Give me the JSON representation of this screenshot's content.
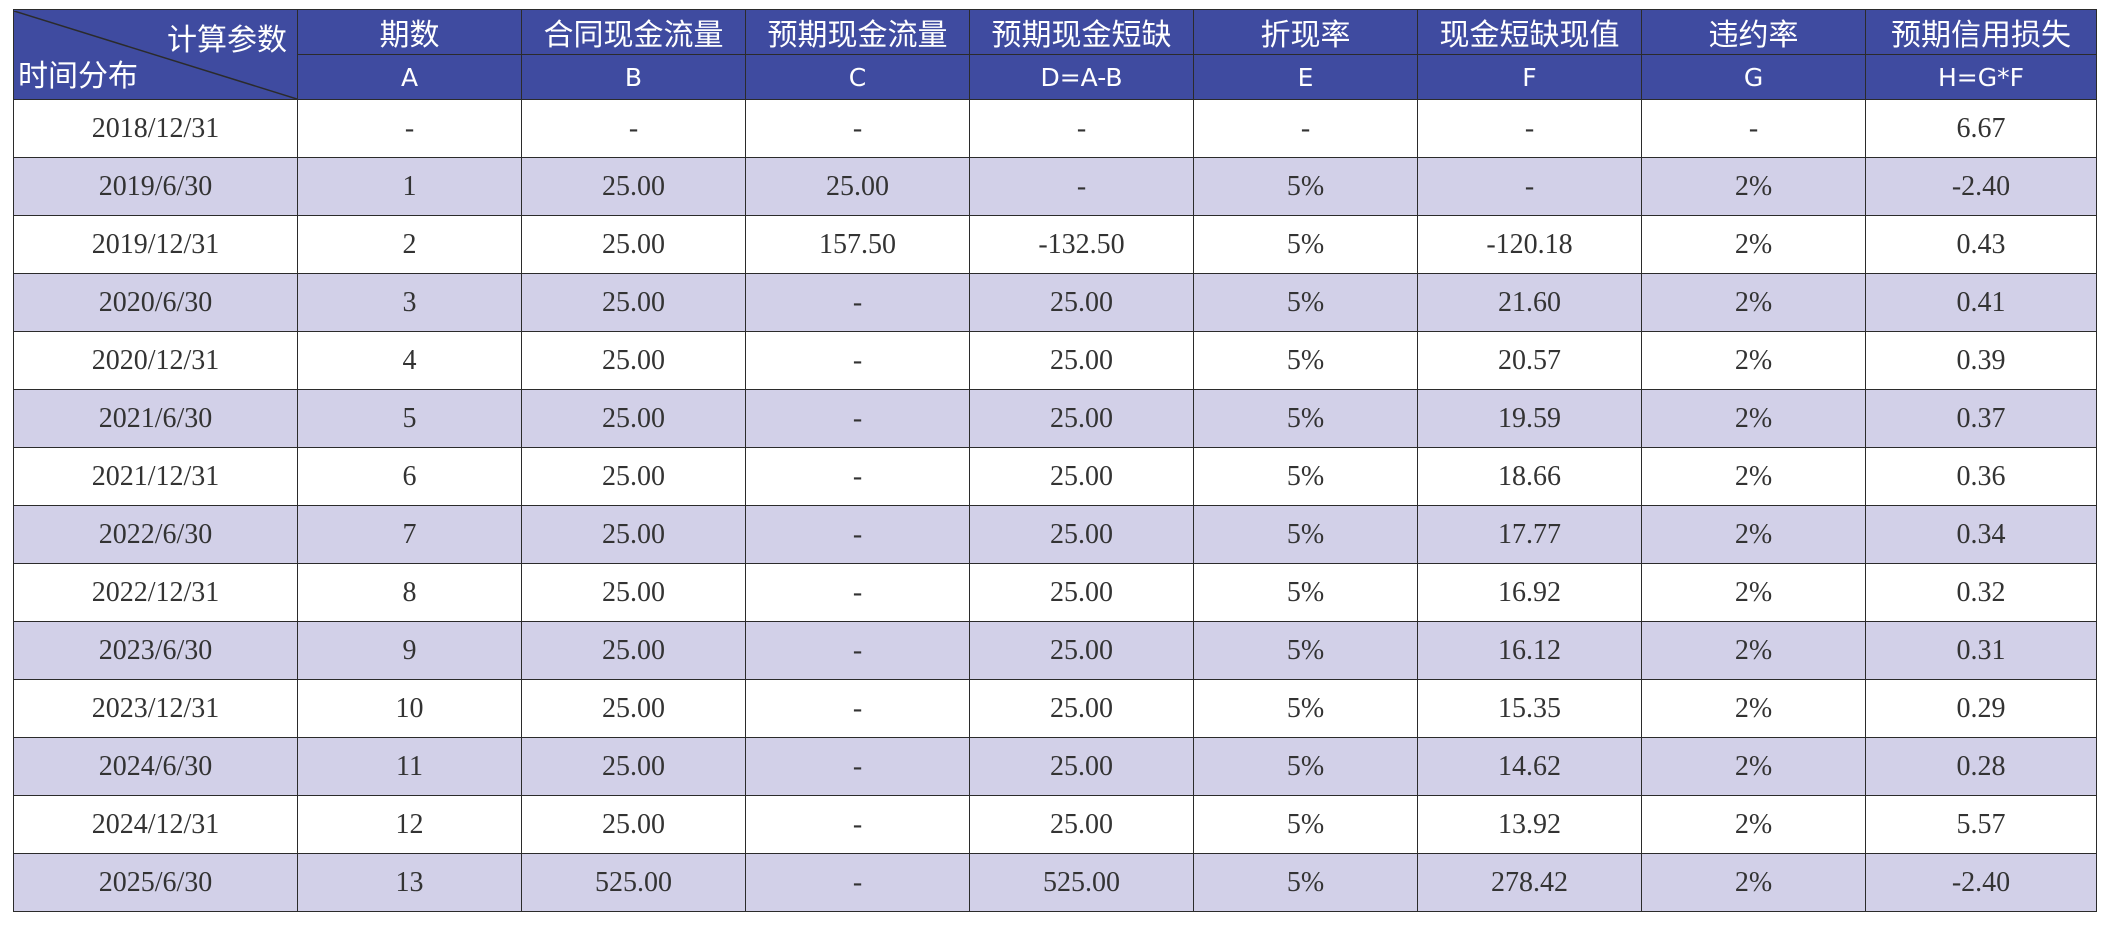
{
  "table": {
    "corner_top": "计算参数",
    "corner_bottom": "时间分布",
    "headers": [
      {
        "title": "期数",
        "code": "A"
      },
      {
        "title": "合同现金流量",
        "code": "B"
      },
      {
        "title": "预期现金流量",
        "code": "C"
      },
      {
        "title": "预期现金短缺",
        "code": "D=A-B"
      },
      {
        "title": "折现率",
        "code": "E"
      },
      {
        "title": "现金短缺现值",
        "code": "F"
      },
      {
        "title": "违约率",
        "code": "G"
      },
      {
        "title": "预期信用损失",
        "code": "H=G*F"
      }
    ],
    "rows": [
      [
        "2018/12/31",
        "-",
        "-",
        "-",
        "-",
        "-",
        "-",
        "-",
        "6.67"
      ],
      [
        "2019/6/30",
        "1",
        "25.00",
        "25.00",
        "-",
        "5%",
        "-",
        "2%",
        "-2.40"
      ],
      [
        "2019/12/31",
        "2",
        "25.00",
        "157.50",
        "-132.50",
        "5%",
        "-120.18",
        "2%",
        "0.43"
      ],
      [
        "2020/6/30",
        "3",
        "25.00",
        "-",
        "25.00",
        "5%",
        "21.60",
        "2%",
        "0.41"
      ],
      [
        "2020/12/31",
        "4",
        "25.00",
        "-",
        "25.00",
        "5%",
        "20.57",
        "2%",
        "0.39"
      ],
      [
        "2021/6/30",
        "5",
        "25.00",
        "-",
        "25.00",
        "5%",
        "19.59",
        "2%",
        "0.37"
      ],
      [
        "2021/12/31",
        "6",
        "25.00",
        "-",
        "25.00",
        "5%",
        "18.66",
        "2%",
        "0.36"
      ],
      [
        "2022/6/30",
        "7",
        "25.00",
        "-",
        "25.00",
        "5%",
        "17.77",
        "2%",
        "0.34"
      ],
      [
        "2022/12/31",
        "8",
        "25.00",
        "-",
        "25.00",
        "5%",
        "16.92",
        "2%",
        "0.32"
      ],
      [
        "2023/6/30",
        "9",
        "25.00",
        "-",
        "25.00",
        "5%",
        "16.12",
        "2%",
        "0.31"
      ],
      [
        "2023/12/31",
        "10",
        "25.00",
        "-",
        "25.00",
        "5%",
        "15.35",
        "2%",
        "0.29"
      ],
      [
        "2024/6/30",
        "11",
        "25.00",
        "-",
        "25.00",
        "5%",
        "14.62",
        "2%",
        "0.28"
      ],
      [
        "2024/12/31",
        "12",
        "25.00",
        "-",
        "25.00",
        "5%",
        "13.92",
        "2%",
        "5.57"
      ],
      [
        "2025/6/30",
        "13",
        "525.00",
        "-",
        "525.00",
        "5%",
        "278.42",
        "2%",
        "-2.40"
      ]
    ],
    "colors": {
      "header_bg": "#3f4ba0",
      "header_text": "#ffffff",
      "stripe_bg": "#d2d0e8",
      "border": "#2b2b2b"
    }
  }
}
